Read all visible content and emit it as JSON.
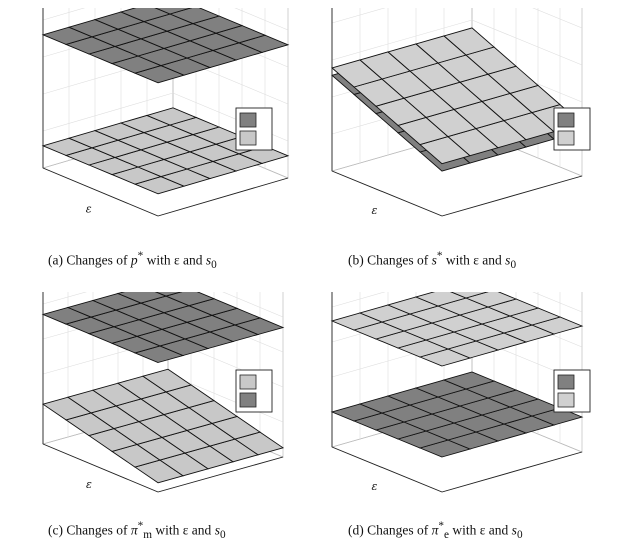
{
  "panels": [
    {
      "caption": {
        "prefix": "(a) Changes of ",
        "symbol": "p",
        "sup": "*",
        "sub": "",
        "suffix": " with ε and ",
        "s0": "s",
        "s0_sub": "0"
      },
      "ylabel": "ε"
    },
    {
      "caption": {
        "prefix": "(b) Changes of ",
        "symbol": "s",
        "sup": "*",
        "sub": "",
        "suffix": " with ε and ",
        "s0": "s",
        "s0_sub": "0"
      },
      "ylabel": "ε"
    },
    {
      "caption": {
        "prefix": "(c) Changes of ",
        "symbol": "π",
        "sup": "*",
        "sub": "m",
        "suffix": " with ε and ",
        "s0": "s",
        "s0_sub": "0"
      },
      "ylabel": "ε"
    },
    {
      "caption": {
        "prefix": "(d) Changes of ",
        "symbol": "π",
        "sup": "*",
        "sub": "e",
        "suffix": " with ε and ",
        "s0": "s",
        "s0_sub": "0"
      },
      "ylabel": "ε"
    }
  ],
  "chart_data": [
    {
      "type": "surface",
      "surfaces": [
        {
          "color": "#808080",
          "level": 0.72,
          "tilt": 0.0
        },
        {
          "color": "#c8c8c8",
          "level": 0.12,
          "tilt": 0.0
        }
      ],
      "legend_placement": "right",
      "legend_swatches": [
        "#808080",
        "#c8c8c8"
      ],
      "grid": true
    },
    {
      "type": "surface",
      "surfaces": [
        {
          "color": "#808080",
          "level": 0.38,
          "tilt": 0.55
        },
        {
          "color": "#d0d0d0",
          "level": 0.42,
          "tilt": 0.55
        }
      ],
      "legend_placement": "right",
      "legend_swatches": [
        "#808080",
        "#d0d0d0"
      ],
      "grid": true
    },
    {
      "type": "surface",
      "surfaces": [
        {
          "color": "#808080",
          "level": 0.74,
          "tilt": 0.0
        },
        {
          "color": "#c8c8c8",
          "level": 0.14,
          "tilt": 0.35
        }
      ],
      "legend_placement": "right",
      "legend_swatches": [
        "#c8c8c8",
        "#808080"
      ],
      "grid": true
    },
    {
      "type": "surface",
      "surfaces": [
        {
          "color": "#d0d0d0",
          "level": 0.72,
          "tilt": 0.0
        },
        {
          "color": "#808080",
          "level": 0.2,
          "tilt": 0.0
        }
      ],
      "legend_placement": "right",
      "legend_swatches": [
        "#808080",
        "#d0d0d0"
      ],
      "grid": true
    }
  ]
}
